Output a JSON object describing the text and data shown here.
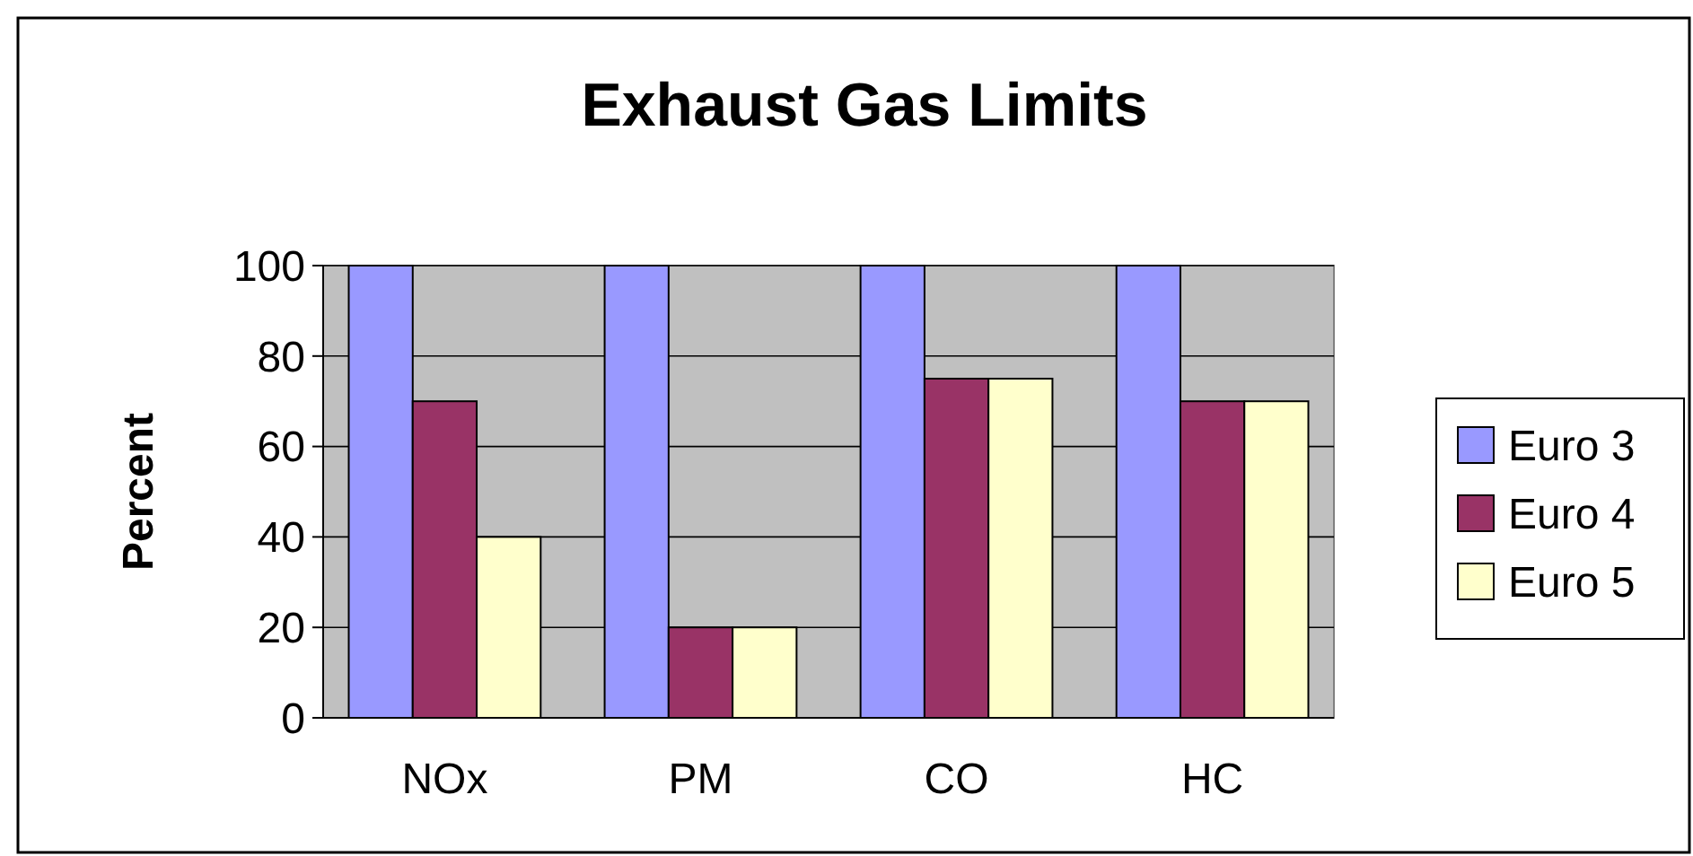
{
  "chart_data": {
    "type": "bar",
    "title": "Exhaust Gas Limits",
    "ylabel": "Percent",
    "categories": [
      "NOx",
      "PM",
      "CO",
      "HC"
    ],
    "series": [
      {
        "name": "Euro 3",
        "color": "#9999ff",
        "values": [
          100,
          100,
          100,
          100
        ]
      },
      {
        "name": "Euro 4",
        "color": "#993366",
        "values": [
          70,
          20,
          75,
          70
        ]
      },
      {
        "name": "Euro 5",
        "color": "#ffffcc",
        "values": [
          40,
          20,
          75,
          70
        ]
      }
    ],
    "ylim": [
      0,
      100
    ],
    "yticks": [
      0,
      20,
      40,
      60,
      80,
      100
    ],
    "grid": "y",
    "legend": "right"
  }
}
